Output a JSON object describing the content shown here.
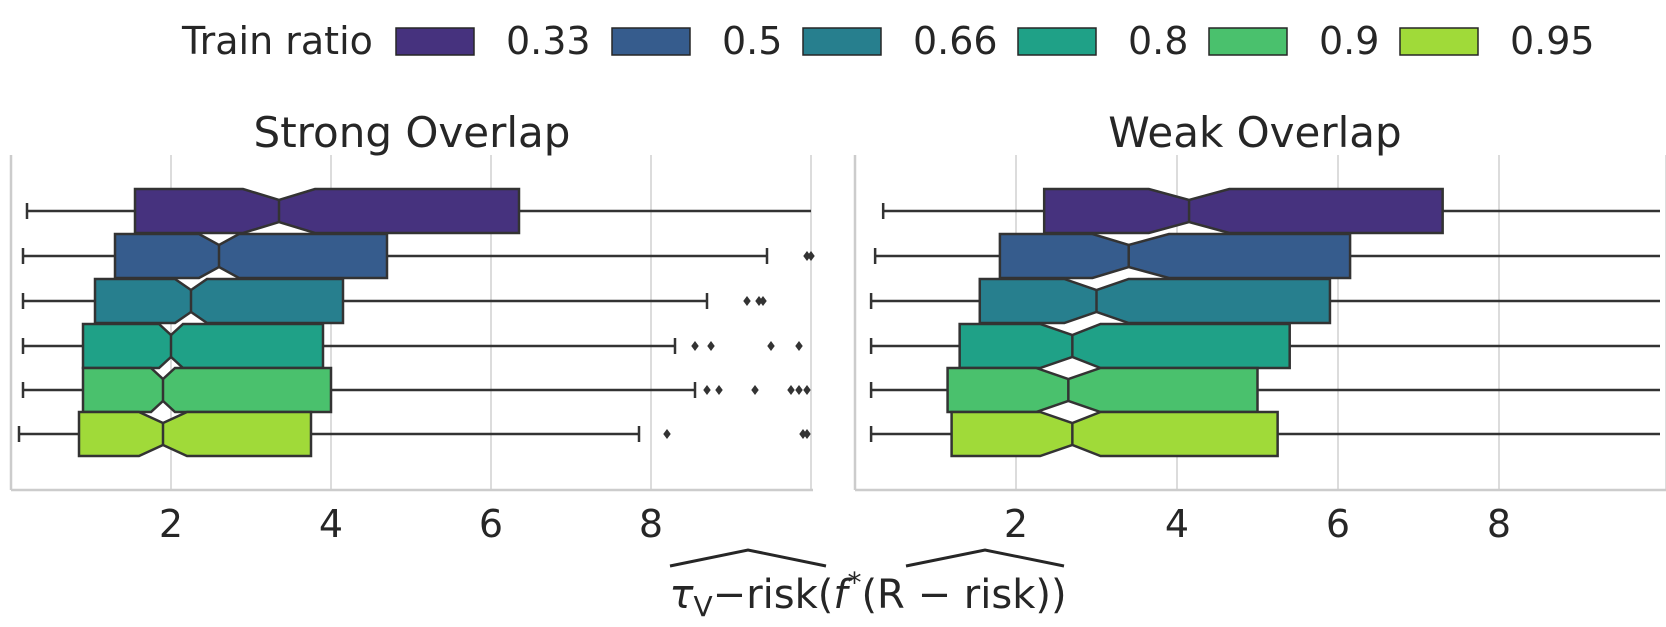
{
  "legend": {
    "title": "Train ratio",
    "entries": [
      {
        "label": "0.33",
        "color": "#46327e"
      },
      {
        "label": "0.5",
        "color": "#365c8d"
      },
      {
        "label": "0.66",
        "color": "#277f8e"
      },
      {
        "label": "0.8",
        "color": "#1fa187"
      },
      {
        "label": "0.9",
        "color": "#4ac16d"
      },
      {
        "label": "0.95",
        "color": "#a0da39"
      }
    ]
  },
  "xlabel": {
    "tau": "τ",
    "tau_sub": "V",
    "mid": "−risk(",
    "f": "f",
    "star": "*",
    "rest": "(R − risk))"
  },
  "chart_data": [
    {
      "type": "box",
      "orientation": "horizontal",
      "notched": true,
      "title": "Strong Overlap",
      "xlim": [
        0.0,
        10.0
      ],
      "xticks": [
        2,
        4,
        6,
        8
      ],
      "grid": true,
      "series": [
        {
          "name": "0.33",
          "whisker_low": 0.2,
          "q1": 1.55,
          "median": 3.35,
          "q3": 6.35,
          "whisker_high": 10.0,
          "notch": [
            2.9,
            3.8
          ],
          "outliers": []
        },
        {
          "name": "0.5",
          "whisker_low": 0.15,
          "q1": 1.3,
          "median": 2.6,
          "q3": 4.7,
          "whisker_high": 9.45,
          "notch": [
            2.35,
            2.85
          ],
          "outliers": [
            9.95,
            10.0
          ]
        },
        {
          "name": "0.66",
          "whisker_low": 0.15,
          "q1": 1.05,
          "median": 2.25,
          "q3": 4.15,
          "whisker_high": 8.7,
          "notch": [
            2.05,
            2.45
          ],
          "outliers": [
            9.2,
            9.35,
            9.4
          ]
        },
        {
          "name": "0.8",
          "whisker_low": 0.15,
          "q1": 0.9,
          "median": 2.0,
          "q3": 3.9,
          "whisker_high": 8.3,
          "notch": [
            1.85,
            2.15
          ],
          "outliers": [
            8.55,
            8.75,
            9.5,
            9.85
          ]
        },
        {
          "name": "0.9",
          "whisker_low": 0.15,
          "q1": 0.9,
          "median": 1.9,
          "q3": 4.0,
          "whisker_high": 8.55,
          "notch": [
            1.75,
            2.05
          ],
          "outliers": [
            8.7,
            8.85,
            9.3,
            9.75,
            9.85,
            9.95
          ]
        },
        {
          "name": "0.95",
          "whisker_low": 0.1,
          "q1": 0.85,
          "median": 1.9,
          "q3": 3.75,
          "whisker_high": 7.85,
          "notch": [
            1.6,
            2.2
          ],
          "outliers": [
            8.2,
            9.9,
            9.95
          ]
        }
      ]
    },
    {
      "type": "box",
      "orientation": "horizontal",
      "notched": true,
      "title": "Weak Overlap",
      "xlim": [
        0.0,
        10.0
      ],
      "xticks": [
        2,
        4,
        6,
        8
      ],
      "grid": true,
      "series": [
        {
          "name": "0.33",
          "whisker_low": 0.35,
          "q1": 2.35,
          "median": 4.15,
          "q3": 7.3,
          "whisker_high": 10.0,
          "notch": [
            3.65,
            4.65
          ],
          "outliers": []
        },
        {
          "name": "0.5",
          "whisker_low": 0.25,
          "q1": 1.8,
          "median": 3.4,
          "q3": 6.15,
          "whisker_high": 10.0,
          "notch": [
            2.95,
            3.9
          ],
          "outliers": []
        },
        {
          "name": "0.66",
          "whisker_low": 0.2,
          "q1": 1.55,
          "median": 3.0,
          "q3": 5.9,
          "whisker_high": 10.0,
          "notch": [
            2.6,
            3.4
          ],
          "outliers": []
        },
        {
          "name": "0.8",
          "whisker_low": 0.2,
          "q1": 1.3,
          "median": 2.7,
          "q3": 5.4,
          "whisker_high": 10.0,
          "notch": [
            2.3,
            3.05
          ],
          "outliers": []
        },
        {
          "name": "0.9",
          "whisker_low": 0.2,
          "q1": 1.15,
          "median": 2.65,
          "q3": 5.0,
          "whisker_high": 10.0,
          "notch": [
            2.25,
            3.05
          ],
          "outliers": []
        },
        {
          "name": "0.95",
          "whisker_low": 0.2,
          "q1": 1.2,
          "median": 2.7,
          "q3": 5.25,
          "whisker_high": 10.0,
          "notch": [
            2.3,
            3.05
          ],
          "outliers": []
        }
      ]
    }
  ]
}
